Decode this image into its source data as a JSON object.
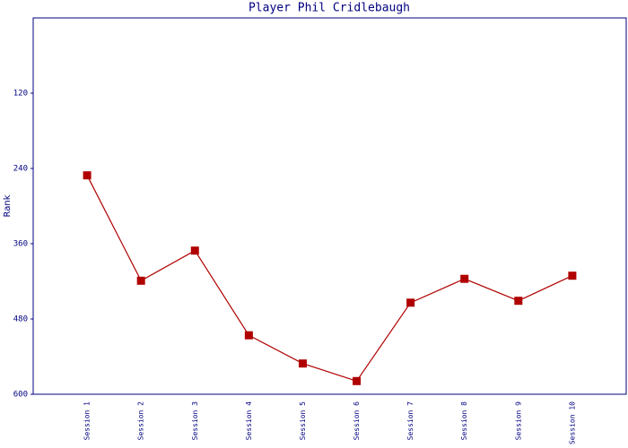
{
  "chart_data": {
    "type": "line",
    "title": "Player Phil Cridlebaugh",
    "y_label": "Rank",
    "categories": [
      "Session 1",
      "Session 2",
      "Session 3",
      "Session 4",
      "Session 5",
      "Session 6",
      "Session 7",
      "Session 8",
      "Session 9",
      "Session 10"
    ],
    "series": [
      {
        "name": "Rank",
        "color": "#b00000",
        "values": [
          251,
          419,
          371,
          506,
          551,
          579,
          454,
          416,
          451,
          411
        ]
      }
    ],
    "ylim": [
      0,
      600
    ],
    "yticks": [
      120,
      240,
      360,
      480,
      600
    ],
    "y_inverted": true,
    "grid": false
  }
}
